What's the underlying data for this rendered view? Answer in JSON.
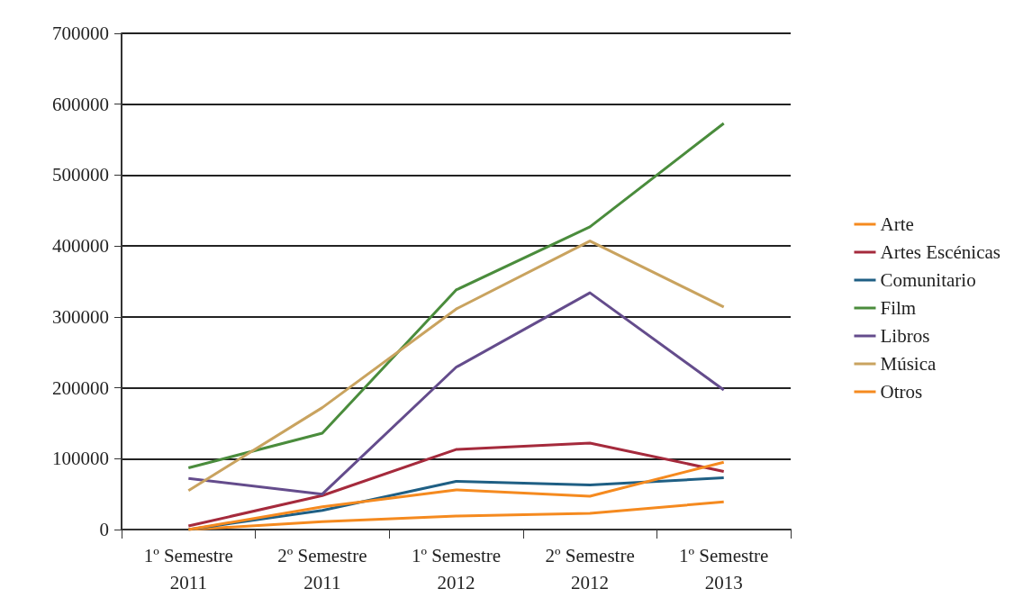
{
  "chart_data": {
    "type": "line",
    "categories": [
      "1º Semestre\n2011",
      "2º Semestre\n2011",
      "1º Semestre\n2012",
      "2º Semestre\n2012",
      "1º Semestre\n2013"
    ],
    "series": [
      {
        "name": "Arte",
        "color": "#f58a1f",
        "values": [
          0,
          11000,
          19000,
          23000,
          39000
        ]
      },
      {
        "name": "Artes Escénicas",
        "color": "#a52a3c",
        "values": [
          5000,
          48000,
          113000,
          122000,
          82000
        ]
      },
      {
        "name": "Comunitario",
        "color": "#1f5f84",
        "values": [
          0,
          27000,
          68000,
          63000,
          73000
        ]
      },
      {
        "name": "Film",
        "color": "#4a8c3c",
        "values": [
          87000,
          136000,
          338000,
          427000,
          573000
        ]
      },
      {
        "name": "Libros",
        "color": "#644c8c",
        "values": [
          72000,
          50000,
          229000,
          334000,
          197000
        ]
      },
      {
        "name": "Música",
        "color": "#c9a35f",
        "values": [
          55000,
          172000,
          311000,
          407000,
          314000
        ]
      },
      {
        "name": "Otros",
        "color": "#f58a1f",
        "values": [
          0,
          32000,
          56000,
          47000,
          95000
        ]
      }
    ],
    "ylim": [
      0,
      700000
    ],
    "yticks": [
      0,
      100000,
      200000,
      300000,
      400000,
      500000,
      600000,
      700000
    ],
    "grid": "y",
    "legend": "right",
    "marker": "none",
    "line_style": "solid"
  }
}
